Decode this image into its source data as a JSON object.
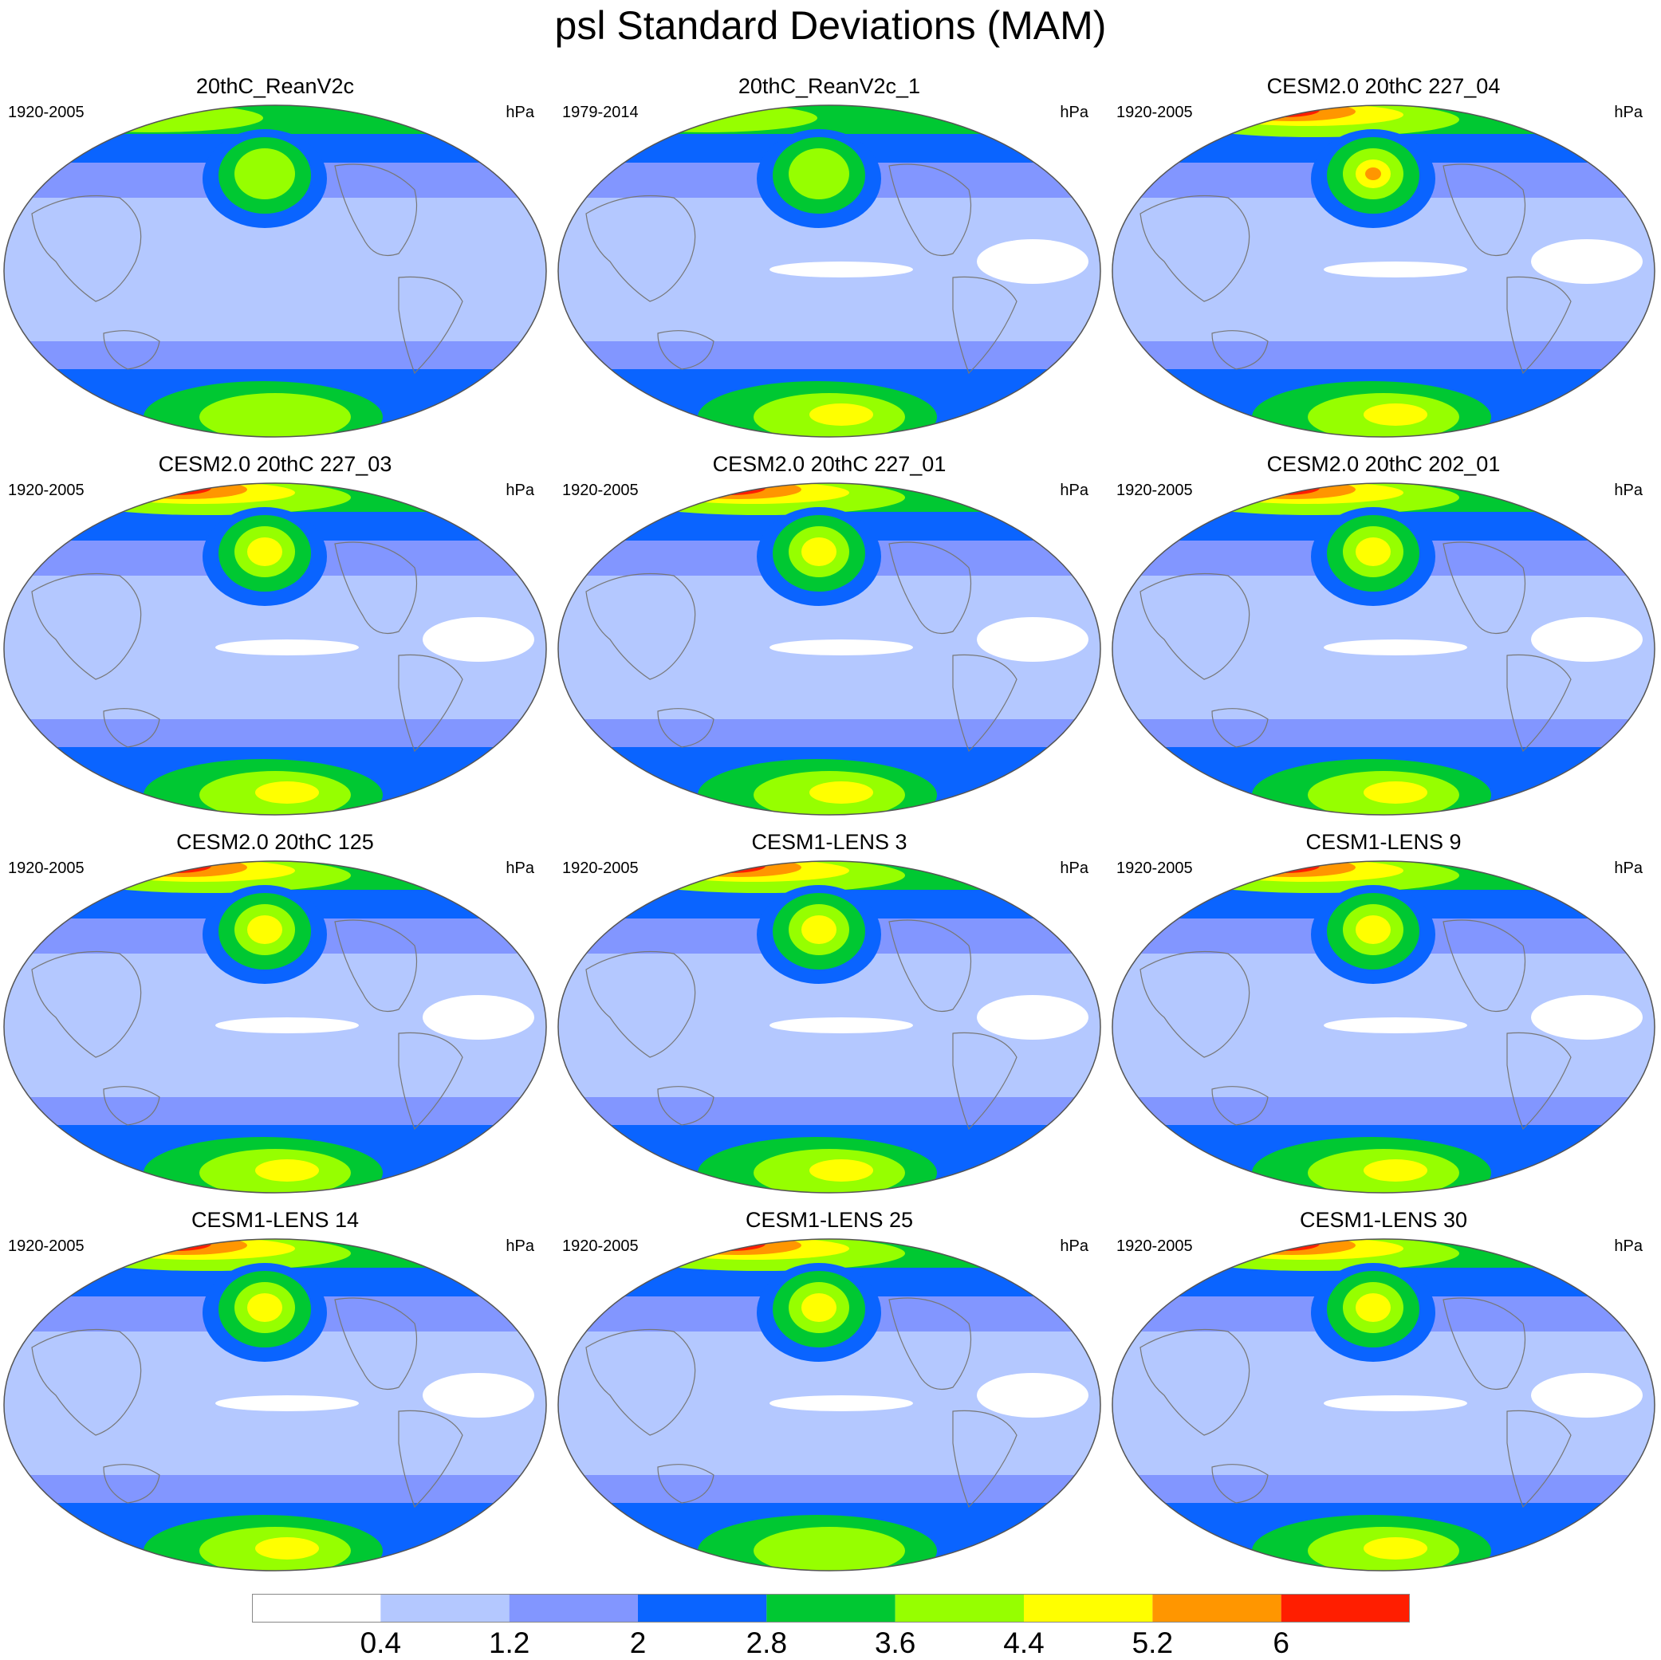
{
  "title": "psl Standard Deviations (MAM)",
  "panels": [
    {
      "title": "20thC_ReanV2c",
      "years": "1920-2005",
      "units": "hPa"
    },
    {
      "title": "20thC_ReanV2c_1",
      "years": "1979-2014",
      "units": "hPa"
    },
    {
      "title": "CESM2.0 20thC 227_04",
      "years": "1920-2005",
      "units": "hPa"
    },
    {
      "title": "CESM2.0 20thC 227_03",
      "years": "1920-2005",
      "units": "hPa"
    },
    {
      "title": "CESM2.0 20thC 227_01",
      "years": "1920-2005",
      "units": "hPa"
    },
    {
      "title": "CESM2.0 20thC 202_01",
      "years": "1920-2005",
      "units": "hPa"
    },
    {
      "title": "CESM2.0 20thC 125",
      "years": "1920-2005",
      "units": "hPa"
    },
    {
      "title": "CESM1-LENS 3",
      "years": "1920-2005",
      "units": "hPa"
    },
    {
      "title": "CESM1-LENS 9",
      "years": "1920-2005",
      "units": "hPa"
    },
    {
      "title": "CESM1-LENS 14",
      "years": "1920-2005",
      "units": "hPa"
    },
    {
      "title": "CESM1-LENS 25",
      "years": "1920-2005",
      "units": "hPa"
    },
    {
      "title": "CESM1-LENS 30",
      "years": "1920-2005",
      "units": "hPa"
    }
  ],
  "colorbar": {
    "labels": [
      "0.4",
      "1.2",
      "2",
      "2.8",
      "3.6",
      "4.4",
      "5.2",
      "6"
    ],
    "colors": [
      "#ffffff",
      "#b4c8ff",
      "#8296ff",
      "#0a64ff",
      "#00c832",
      "#96ff00",
      "#ffff00",
      "#ff9600",
      "#ff1e00"
    ]
  }
}
